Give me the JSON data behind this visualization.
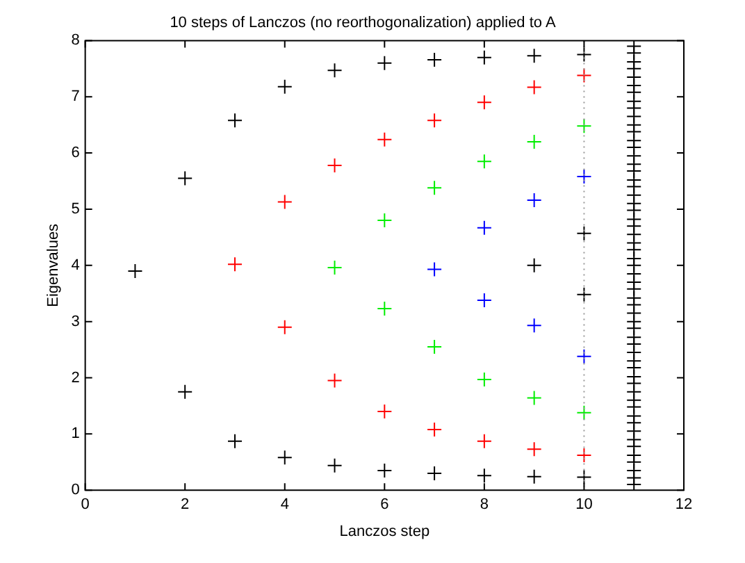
{
  "chart_data": {
    "type": "scatter",
    "title": "10 steps of Lanczos (no reorthogonalization) applied to A",
    "xlabel": "Lanczos step",
    "ylabel": "Eigenvalues",
    "xlim": [
      0,
      12
    ],
    "xticks": [
      0,
      2,
      4,
      6,
      8,
      10,
      12
    ],
    "ylim": [
      0,
      8
    ],
    "yticks": [
      0,
      1,
      2,
      3,
      4,
      5,
      6,
      7,
      8
    ],
    "marker": "cross",
    "legend": false,
    "ref_lines": [
      {
        "axis": "x",
        "value": 10,
        "color": "#999999",
        "line_style": "dotted"
      }
    ],
    "series": [
      {
        "color": "#000000",
        "x": [
          1,
          2,
          2,
          3,
          3,
          4,
          4,
          5,
          5,
          6,
          6,
          7,
          7,
          8,
          8,
          9,
          9,
          9,
          10,
          10,
          10,
          10
        ],
        "values": [
          3.9,
          5.55,
          1.75,
          6.58,
          0.87,
          7.18,
          0.58,
          7.47,
          0.44,
          7.6,
          0.35,
          7.66,
          0.3,
          7.7,
          0.26,
          7.73,
          4.0,
          0.24,
          7.75,
          4.57,
          3.48,
          0.23
        ]
      },
      {
        "color": "#ff0000",
        "x": [
          3,
          4,
          4,
          5,
          5,
          6,
          6,
          7,
          7,
          8,
          8,
          9,
          9,
          10,
          10
        ],
        "values": [
          4.02,
          5.13,
          2.9,
          5.78,
          1.95,
          6.24,
          1.4,
          6.58,
          1.08,
          6.9,
          0.87,
          7.17,
          0.73,
          7.38,
          0.62
        ]
      },
      {
        "color": "#00ee00",
        "x": [
          5,
          6,
          6,
          7,
          7,
          8,
          8,
          9,
          9,
          10,
          10
        ],
        "values": [
          3.96,
          4.8,
          3.23,
          5.38,
          2.55,
          5.85,
          1.97,
          6.2,
          1.64,
          6.48,
          1.38
        ]
      },
      {
        "color": "#0000ff",
        "x": [
          7,
          8,
          8,
          9,
          9,
          10,
          10
        ],
        "values": [
          3.93,
          4.67,
          3.38,
          5.16,
          2.93,
          5.58,
          2.38
        ]
      },
      {
        "color": "#000000",
        "x": [
          11,
          11,
          11,
          11,
          11,
          11,
          11,
          11,
          11,
          11,
          11,
          11,
          11,
          11,
          11,
          11,
          11,
          11,
          11,
          11,
          11,
          11,
          11,
          11,
          11,
          11,
          11,
          11,
          11,
          11,
          11,
          11,
          11,
          11,
          11,
          11,
          11,
          11,
          11,
          11,
          11,
          11,
          11,
          11,
          11,
          11,
          11,
          11,
          11,
          11,
          11,
          11,
          11,
          11,
          11,
          11,
          11
        ],
        "values": [
          0.1,
          0.22,
          0.35,
          0.5,
          0.62,
          0.78,
          0.9,
          1.05,
          1.2,
          1.32,
          1.48,
          1.6,
          1.75,
          1.9,
          2.02,
          2.18,
          2.3,
          2.45,
          2.6,
          2.72,
          2.88,
          3.0,
          3.15,
          3.3,
          3.42,
          3.58,
          3.7,
          3.85,
          4.0,
          4.12,
          4.28,
          4.4,
          4.55,
          4.7,
          4.82,
          4.98,
          5.1,
          5.25,
          5.4,
          5.52,
          5.68,
          5.8,
          5.95,
          6.1,
          6.22,
          6.38,
          6.5,
          6.65,
          6.8,
          6.92,
          7.08,
          7.2,
          7.35,
          7.5,
          7.62,
          7.78,
          7.9
        ]
      }
    ]
  }
}
